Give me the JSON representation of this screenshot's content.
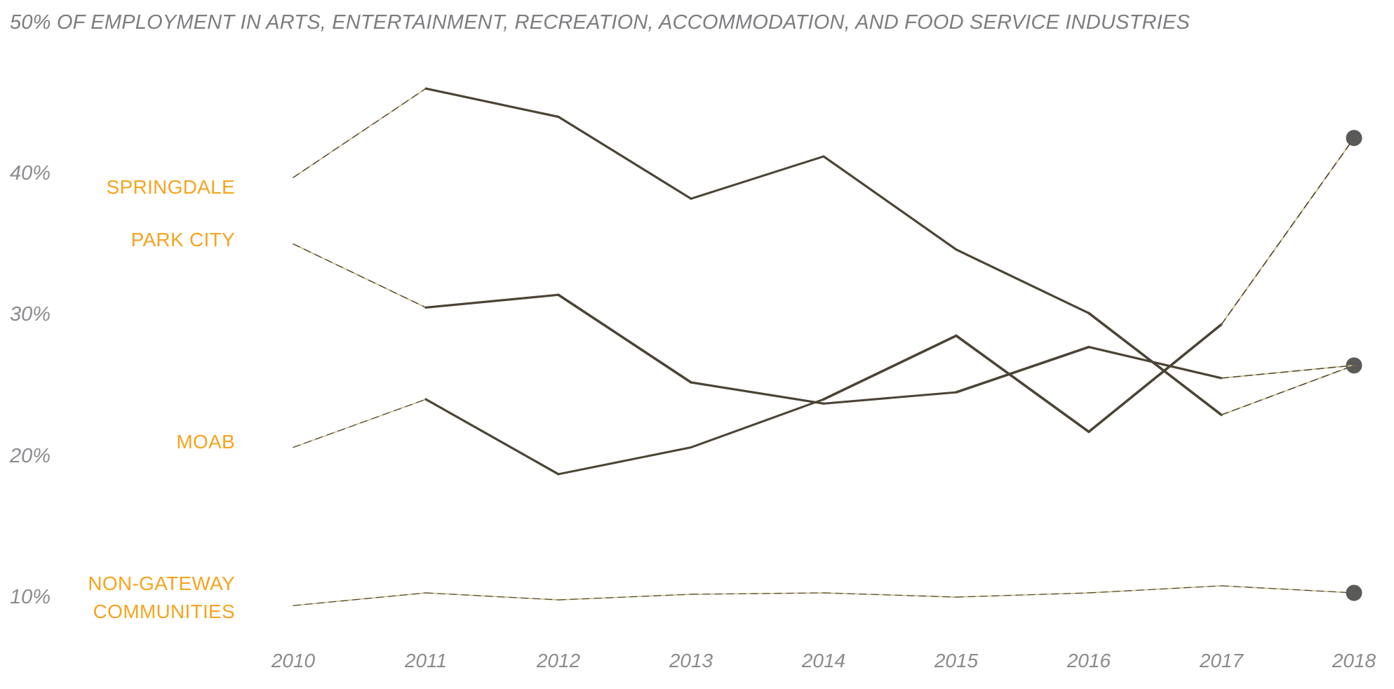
{
  "title": "50% OF EMPLOYMENT IN ARTS, ENTERTAINMENT, RECREATION, ACCOMMODATION, AND FOOD SERVICE INDUSTRIES",
  "colors": {
    "accent_orange": "#F5A41F",
    "line_dark": "#4B4435",
    "line_khaki": "#CCC08A",
    "dot_gray": "#5A5A58",
    "axis_gray": "#8B8B8F",
    "title_gray": "#7D7D81",
    "background": "#FFFFFF"
  },
  "y_axis": {
    "labels": [
      "40%",
      "30%",
      "20%",
      "10%"
    ],
    "values": [
      40,
      30,
      20,
      10
    ]
  },
  "x_axis": {
    "labels": [
      "2010",
      "2011",
      "2012",
      "2013",
      "2014",
      "2015",
      "2016",
      "2017",
      "2018"
    ]
  },
  "series_labels": {
    "springdale": "SPRINGDALE",
    "park_city": "PARK CITY",
    "moab": "MOAB",
    "non_gateway_line1": "NON-GATEWAY",
    "non_gateway_line2": "COMMUNITIES"
  },
  "chart_data": {
    "type": "line",
    "title": "50% OF EMPLOYMENT IN ARTS, ENTERTAINMENT, RECREATION, ACCOMMODATION, AND FOOD SERVICE INDUSTRIES",
    "x": [
      2010,
      2011,
      2012,
      2013,
      2014,
      2015,
      2016,
      2017,
      2018
    ],
    "series": [
      {
        "name": "Springdale",
        "values": [
          39.7,
          46.0,
          44.0,
          38.2,
          41.2,
          34.6,
          30.1,
          22.9,
          26.4
        ],
        "end_dot": true
      },
      {
        "name": "Park City",
        "values": [
          35.0,
          30.5,
          31.4,
          25.2,
          23.7,
          24.5,
          27.7,
          25.5,
          26.4
        ],
        "end_dot": false
      },
      {
        "name": "Moab",
        "values": [
          20.6,
          24.0,
          18.7,
          20.6,
          24.0,
          28.5,
          21.7,
          29.3,
          42.5
        ],
        "end_dot": true
      },
      {
        "name": "Non-Gateway Communities",
        "values": [
          9.4,
          10.3,
          9.8,
          10.2,
          10.3,
          10.0,
          10.3,
          10.8,
          10.3
        ],
        "end_dot": true
      }
    ],
    "ylabel": "",
    "xlabel": "",
    "ylim": [
      6,
      50
    ],
    "grid": false,
    "legend_position": "inline-left"
  }
}
